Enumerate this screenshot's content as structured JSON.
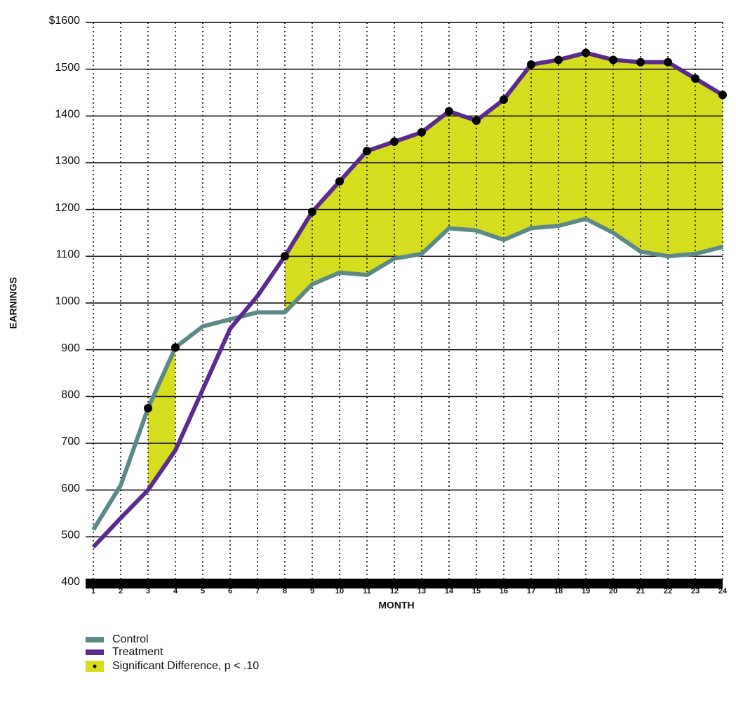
{
  "chart_data": {
    "type": "line",
    "x_label": "MONTH",
    "y_label": "EARNINGS",
    "x": [
      1,
      2,
      3,
      4,
      5,
      6,
      7,
      8,
      9,
      10,
      11,
      12,
      13,
      14,
      15,
      16,
      17,
      18,
      19,
      20,
      21,
      22,
      23,
      24
    ],
    "xlim": [
      1,
      24
    ],
    "ylim": [
      400,
      1600
    ],
    "yticks": [
      400,
      500,
      600,
      700,
      800,
      900,
      1000,
      1100,
      1200,
      1300,
      1400,
      1500,
      {
        "value": 1600,
        "label": "$1600"
      }
    ],
    "grid": true,
    "significance_label": "Significant Difference, p < .10",
    "significance_color": "#d6dc1e",
    "series": [
      {
        "name": "Control",
        "color": "#5b8987",
        "values": [
          515,
          610,
          775,
          905,
          950,
          965,
          980,
          980,
          1040,
          1065,
          1060,
          1095,
          1105,
          1160,
          1155,
          1135,
          1160,
          1165,
          1180,
          1150,
          1110,
          1100,
          1105,
          1120
        ],
        "significant": [
          false,
          false,
          true,
          true,
          false,
          false,
          false,
          false,
          false,
          false,
          false,
          false,
          false,
          false,
          false,
          false,
          false,
          false,
          false,
          false,
          false,
          false,
          false,
          false
        ]
      },
      {
        "name": "Treatment",
        "color": "#5b2a8e",
        "values": [
          478,
          540,
          600,
          685,
          815,
          945,
          1015,
          1100,
          1195,
          1260,
          1325,
          1345,
          1365,
          1410,
          1390,
          1435,
          1510,
          1520,
          1535,
          1520,
          1515,
          1515,
          1480,
          1445
        ],
        "significant": [
          false,
          false,
          false,
          false,
          false,
          false,
          false,
          true,
          true,
          true,
          true,
          true,
          true,
          true,
          true,
          true,
          true,
          true,
          true,
          true,
          true,
          true,
          true,
          true
        ]
      }
    ]
  }
}
